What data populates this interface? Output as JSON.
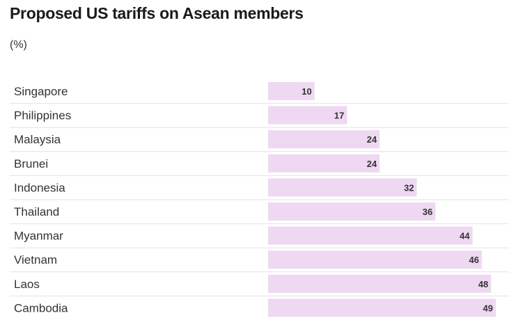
{
  "title": "Proposed US tariffs on Asean members",
  "subtitle": "(%)",
  "colors": {
    "bar": "#eed8f2",
    "divider": "#e2e2e2",
    "text": "#333333"
  },
  "chart_data": {
    "type": "bar",
    "orientation": "horizontal",
    "title": "Proposed US tariffs on Asean members",
    "subtitle": "(%)",
    "categories": [
      "Singapore",
      "Philippines",
      "Malaysia",
      "Brunei",
      "Indonesia",
      "Thailand",
      "Myanmar",
      "Vietnam",
      "Laos",
      "Cambodia"
    ],
    "values": [
      10,
      17,
      24,
      24,
      32,
      36,
      44,
      46,
      48,
      49
    ],
    "value_labels": [
      "10",
      "17",
      "24",
      "24",
      "32",
      "36",
      "44",
      "46",
      "48",
      "49"
    ],
    "xlim": [
      0,
      49
    ],
    "grid": false,
    "legend": "none"
  }
}
